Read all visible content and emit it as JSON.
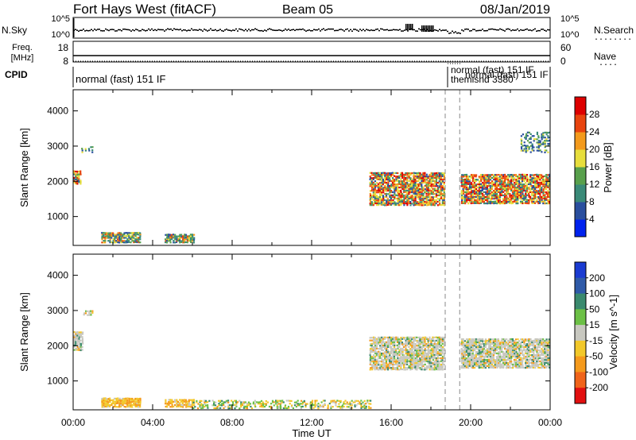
{
  "header": {
    "station": "Fort Hays West (fitACF)",
    "beam": "Beam 05",
    "date": "08/Jan/2019"
  },
  "strips": {
    "nsky": {
      "label": "N.Sky",
      "right_label": "N.Search",
      "left_ticks": [
        "10^5",
        "10^0"
      ],
      "right_ticks": [
        "10^5",
        "10^0"
      ]
    },
    "freq": {
      "label_line1": "Freq.",
      "label_line2": "[MHz]",
      "right_label": "Nave",
      "left_ticks": [
        "18",
        "8"
      ],
      "right_ticks": [
        "60",
        "0"
      ]
    },
    "cpid": {
      "label": "CPID",
      "segments": [
        {
          "text": "normal (fast) 151 IF"
        },
        {
          "text": "normal (fast) 151 IF"
        },
        {
          "text": "themisnd 3380"
        },
        {
          "text": "normal (fast) 151 IF"
        }
      ]
    }
  },
  "chart_data": [
    {
      "type": "heatmap",
      "panel": "power",
      "xlabel": "",
      "ylabel": "Slant Range [km]",
      "xlim_hours": [
        0,
        24
      ],
      "ylim_km": [
        180,
        4600
      ],
      "yticks": [
        "1000",
        "2000",
        "3000",
        "4000"
      ],
      "colorbar": {
        "label": "Power [dB]",
        "ticks": [
          "4",
          "8",
          "12",
          "16",
          "20",
          "24",
          "28"
        ],
        "colors": [
          "#0022ee",
          "#2a4f9e",
          "#3a8a78",
          "#58a04c",
          "#e7de3c",
          "#f39a1c",
          "#e8440e",
          "#dd0000"
        ]
      },
      "echo_regions": [
        {
          "t_start": 0.0,
          "t_end": 0.4,
          "r_low": 1900,
          "r_high": 2300,
          "level": "strong"
        },
        {
          "t_start": 0.4,
          "t_end": 1.0,
          "r_low": 2800,
          "r_high": 3000,
          "level": "weak"
        },
        {
          "t_start": 1.4,
          "t_end": 3.4,
          "r_low": 240,
          "r_high": 550,
          "level": "medium"
        },
        {
          "t_start": 4.6,
          "t_end": 6.1,
          "r_low": 240,
          "r_high": 500,
          "level": "medium"
        },
        {
          "t_start": 14.9,
          "t_end": 18.7,
          "r_low": 1300,
          "r_high": 2250,
          "level": "strong"
        },
        {
          "t_start": 19.5,
          "t_end": 24.0,
          "r_low": 1350,
          "r_high": 2200,
          "level": "strong"
        },
        {
          "t_start": 22.5,
          "t_end": 24.0,
          "r_low": 2800,
          "r_high": 3400,
          "level": "weak"
        }
      ]
    },
    {
      "type": "heatmap",
      "panel": "velocity",
      "xlabel": "Time UT",
      "ylabel": "Slant Range [km]",
      "xlim_hours": [
        0,
        24
      ],
      "ylim_km": [
        180,
        4600
      ],
      "xticks": [
        "00:00",
        "04:00",
        "08:00",
        "12:00",
        "16:00",
        "20:00",
        "00:00"
      ],
      "yticks": [
        "1000",
        "2000",
        "3000",
        "4000"
      ],
      "colorbar": {
        "label": "Velocity [m s^-1]",
        "ticks": [
          "200",
          "100",
          "50",
          "15",
          "-15",
          "-50",
          "-100",
          "-200"
        ],
        "colors": [
          "#1a3bd1",
          "#2f5aa8",
          "#3a8a6e",
          "#6cc046",
          "#c8c8c0",
          "#f2c82a",
          "#f59a1c",
          "#f0641a",
          "#e21010"
        ]
      },
      "echo_regions": [
        {
          "t_start": 0.0,
          "t_end": 0.5,
          "r_low": 1850,
          "r_high": 2400,
          "level": "ground"
        },
        {
          "t_start": 0.5,
          "t_end": 1.0,
          "r_low": 2850,
          "r_high": 3000,
          "level": "ground"
        },
        {
          "t_start": 1.4,
          "t_end": 3.4,
          "r_low": 240,
          "r_high": 520,
          "level": "negative"
        },
        {
          "t_start": 4.6,
          "t_end": 6.1,
          "r_low": 240,
          "r_high": 480,
          "level": "negative"
        },
        {
          "t_start": 6.0,
          "t_end": 15.0,
          "r_low": 200,
          "r_high": 450,
          "level": "mixed"
        },
        {
          "t_start": 14.9,
          "t_end": 18.7,
          "r_low": 1300,
          "r_high": 2250,
          "level": "ground"
        },
        {
          "t_start": 19.5,
          "t_end": 24.0,
          "r_low": 1350,
          "r_high": 2200,
          "level": "ground"
        }
      ]
    }
  ]
}
